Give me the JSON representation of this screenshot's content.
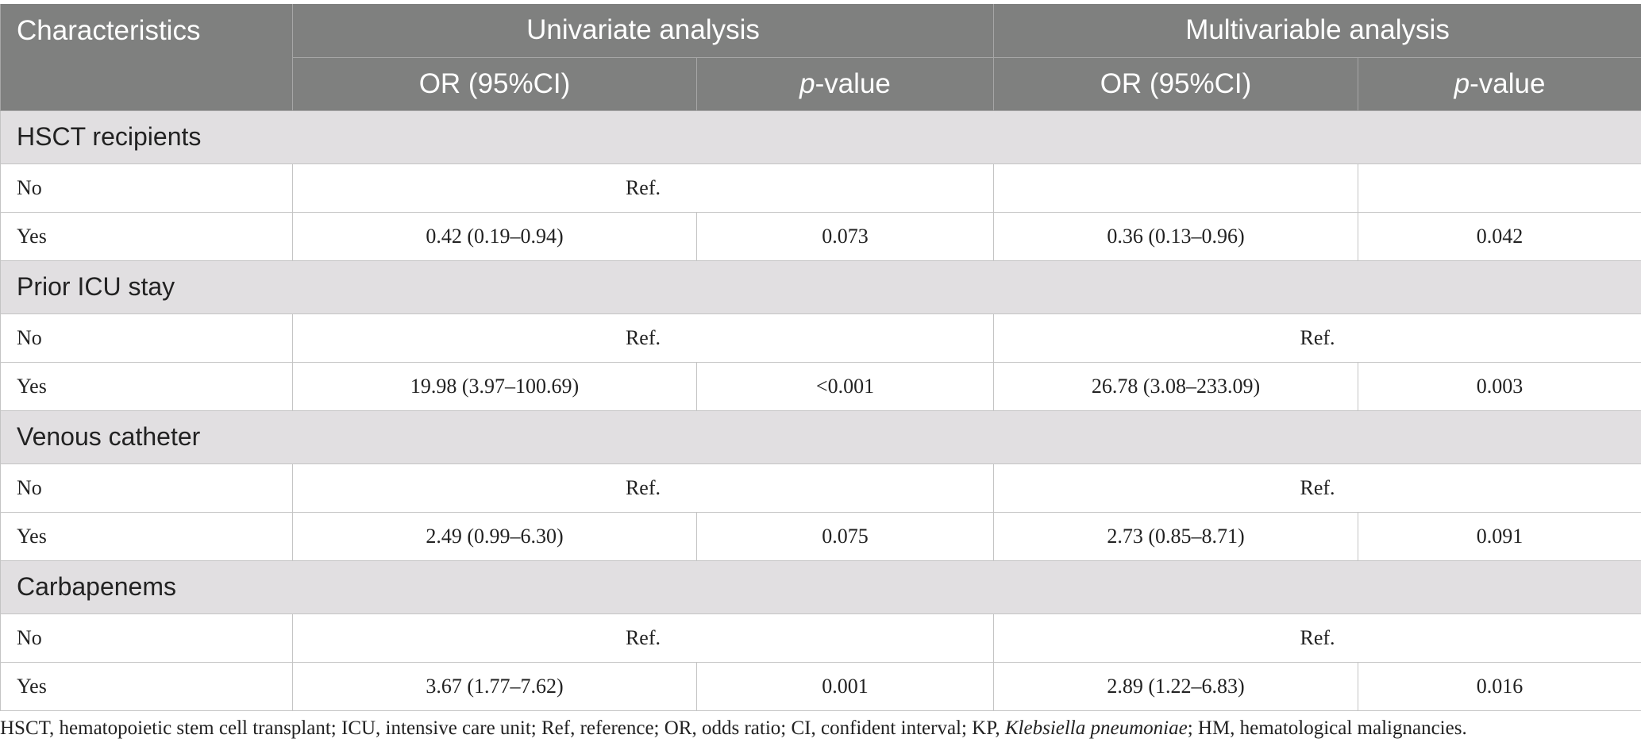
{
  "table": {
    "header": {
      "characteristics": "Characteristics",
      "univariate": "Univariate analysis",
      "multivariable": "Multivariable analysis",
      "or_label": "OR (95%CI)",
      "p_label": [
        "p",
        "-value"
      ]
    },
    "sections": [
      {
        "title": "HSCT recipients",
        "rows": [
          {
            "label": "No",
            "univariate_ref": "Ref."
          },
          {
            "label": "Yes",
            "univariate_or": "0.42 (0.19–0.94)",
            "univariate_p": "0.073",
            "multivariable_or": "0.36 (0.13–0.96)",
            "multivariable_p": "0.042"
          }
        ]
      },
      {
        "title": "Prior ICU stay",
        "rows": [
          {
            "label": "No",
            "univariate_ref": "Ref.",
            "multivariable_ref": "Ref."
          },
          {
            "label": "Yes",
            "univariate_or": "19.98 (3.97–100.69)",
            "univariate_p": "<0.001",
            "multivariable_or": "26.78 (3.08–233.09)",
            "multivariable_p": "0.003"
          }
        ]
      },
      {
        "title": "Venous catheter",
        "rows": [
          {
            "label": "No",
            "univariate_ref": "Ref.",
            "multivariable_ref": "Ref."
          },
          {
            "label": "Yes",
            "univariate_or": "2.49 (0.99–6.30)",
            "univariate_p": "0.075",
            "multivariable_or": "2.73 (0.85–8.71)",
            "multivariable_p": "0.091"
          }
        ]
      },
      {
        "title": "Carbapenems",
        "rows": [
          {
            "label": "No",
            "univariate_ref": "Ref.",
            "multivariable_ref": "Ref."
          },
          {
            "label": "Yes",
            "univariate_or": "3.67 (1.77–7.62)",
            "univariate_p": "0.001",
            "multivariable_or": "2.89 (1.22–6.83)",
            "multivariable_p": "0.016"
          }
        ]
      }
    ]
  },
  "footnote": [
    "HSCT, hematopoietic stem cell transplant; ICU, intensive care unit; Ref, reference; OR, odds ratio; CI, confident interval; KP, ",
    "Klebsiella pneumoniae",
    "; HM, hematological malignancies."
  ]
}
